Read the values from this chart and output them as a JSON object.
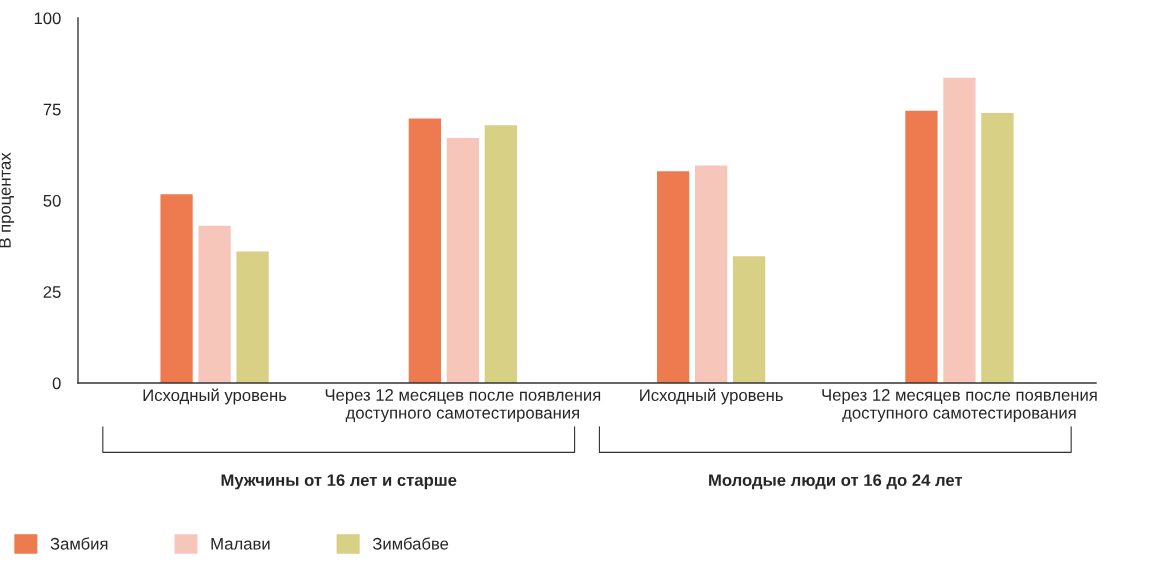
{
  "chart_data": {
    "type": "bar",
    "ylabel": "В процентах",
    "categories": [
      "Исходный уровень",
      "Через 12 месяцев после появления\nдоступного самотестирования",
      "Исходный уровень",
      "Через 12 месяцев после появления\nдоступного самотестирования"
    ],
    "series": [
      {
        "name": "Замбия",
        "color": "#ee7b4f",
        "values": [
          51.7,
          72.5,
          58.0,
          74.6
        ]
      },
      {
        "name": "Малави",
        "color": "#f7c6bb",
        "values": [
          43.1,
          67.1,
          59.6,
          83.6
        ]
      },
      {
        "name": "Зимбабве",
        "color": "#d7d085",
        "values": [
          36.0,
          70.6,
          34.7,
          74.0
        ]
      }
    ],
    "ylim": [
      0,
      100
    ],
    "yticks": [
      0,
      25,
      50,
      75,
      100
    ],
    "grid": false,
    "legend": "bottom left",
    "annotations": [
      "Мужчины от 16 лет и старше",
      "Молодые люди от 16 до 24 лет"
    ]
  }
}
